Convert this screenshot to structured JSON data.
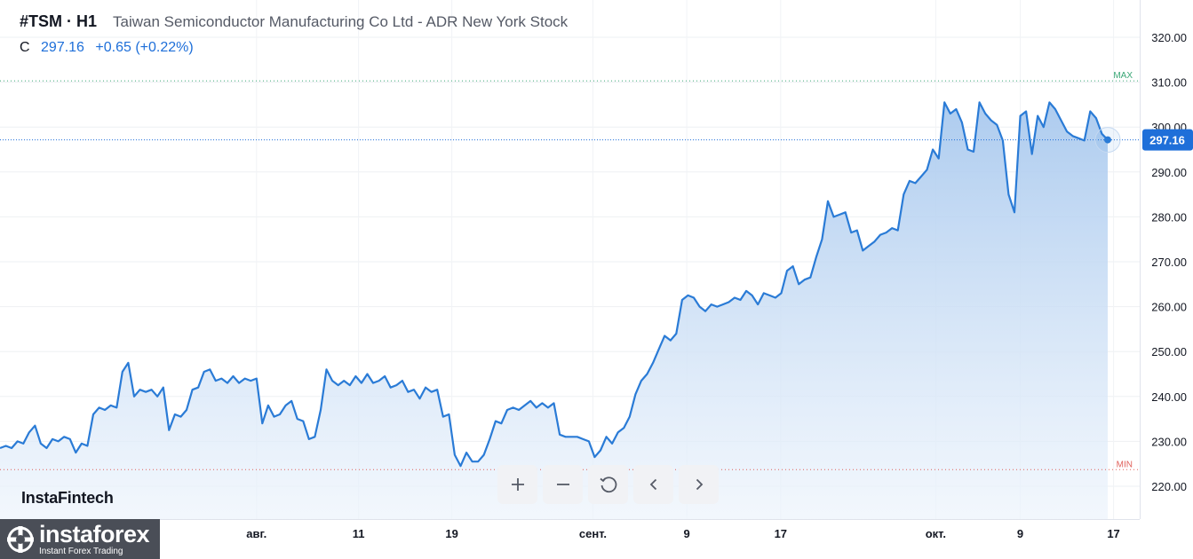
{
  "header": {
    "symbol": "#TSM · H1",
    "name": "Taiwan Semiconductor Manufacturing Co Ltd - ADR New York Stock",
    "ohlc_label": "C",
    "close_value": "297.16",
    "change": "+0.65 (+0.22%)"
  },
  "watermark": "InstaFintech",
  "logo": {
    "brand": "instaforex",
    "tagline": "Instant Forex Trading"
  },
  "toolbar": {
    "zoom_in": "+",
    "zoom_out": "−"
  },
  "colors": {
    "line": "#2a7bd6",
    "fill_top": "#a9c9ee",
    "fill_bottom": "#edf4fc",
    "max_line": "#3aa776",
    "min_line": "#e0605a",
    "price_badge": "#1e6fd9"
  },
  "chart_data": {
    "type": "area",
    "title": "#TSM · H1",
    "ylim": [
      212,
      328
    ],
    "y_ticks": [
      "320.00",
      "310.00",
      "300.00",
      "290.00",
      "280.00",
      "270.00",
      "260.00",
      "250.00",
      "240.00",
      "230.00",
      "220.00"
    ],
    "x_ticks": [
      "авг.",
      "11",
      "19",
      "сент.",
      "9",
      "17",
      "окт.",
      "9",
      "17"
    ],
    "x_tick_index": [
      44,
      61.5,
      77.5,
      101.7,
      117.8,
      133.9,
      160.5,
      175,
      191
    ],
    "max": {
      "label": "MAX",
      "value": 310.3
    },
    "min": {
      "label": "MIN",
      "value": 223.7
    },
    "last": {
      "label": "297.16",
      "value": 297.16
    },
    "series": [
      {
        "values": [
          228.5,
          229,
          228.5,
          230,
          229.5,
          232,
          233.5,
          229.5,
          228.5,
          230.5,
          230,
          231,
          230.5,
          227.5,
          229.5,
          229,
          236,
          237.5,
          237,
          238,
          237.5,
          245.5,
          247.5,
          240,
          241.5,
          241,
          241.5,
          240,
          242,
          232.5,
          236,
          235.5,
          237,
          241.5,
          242,
          245.5,
          246,
          243.5,
          244,
          243,
          244.5,
          243,
          244,
          243.5,
          244,
          234,
          238,
          235.5,
          236,
          238,
          239,
          235,
          234.5,
          230.5,
          231,
          237,
          246,
          243.5,
          242.5,
          243.5,
          242.5,
          244.5,
          243,
          245,
          243,
          243.5,
          244.5,
          242,
          242.5,
          243.5,
          241,
          241.5,
          239.5,
          242,
          241,
          241.5,
          235.5,
          236,
          227,
          224.5,
          227.5,
          225.5,
          225.5,
          227,
          230.5,
          234.5,
          234,
          237,
          237.5,
          237,
          238,
          239,
          237.5,
          238.5,
          237.5,
          238.5,
          231.5,
          231,
          231,
          231,
          230.5,
          230,
          226.5,
          228,
          231,
          229.5,
          232,
          233,
          235.5,
          240.5,
          243.5,
          245,
          247.5,
          250.5,
          253.5,
          252.5,
          254,
          261.5,
          262.5,
          262,
          260,
          259,
          260.5,
          260,
          260.5,
          261,
          262,
          261.5,
          263.5,
          262.5,
          260.5,
          263,
          262.5,
          262,
          263,
          268,
          269,
          265,
          266,
          266.5,
          271,
          275,
          283.5,
          280,
          280.5,
          281,
          276.5,
          277,
          272.5,
          273.5,
          274.5,
          276,
          276.5,
          277.5,
          277,
          285,
          288,
          287.5,
          289,
          290.5,
          295,
          293,
          305.5,
          303,
          304,
          301,
          295,
          294.5,
          305.5,
          303,
          301.5,
          300.5,
          297,
          285,
          281,
          302.5,
          303.5,
          294,
          302.5,
          300,
          305.5,
          304,
          301.5,
          299,
          298,
          297.5,
          297,
          303.5,
          302,
          298.5,
          297.16
        ]
      }
    ]
  }
}
